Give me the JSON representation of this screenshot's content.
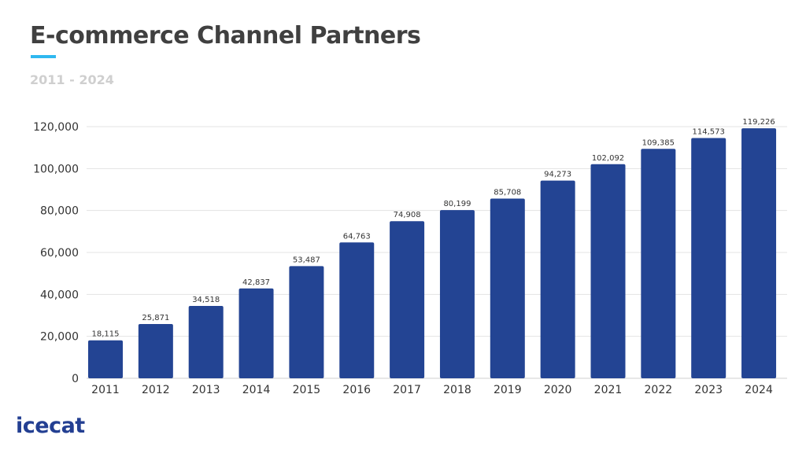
{
  "chart_data": {
    "type": "bar",
    "title": "E-commerce Channel Partners",
    "subtitle": "2011 - 2024",
    "categories": [
      "2011",
      "2012",
      "2013",
      "2014",
      "2015",
      "2016",
      "2017",
      "2018",
      "2019",
      "2020",
      "2021",
      "2022",
      "2023",
      "2024"
    ],
    "values": [
      18115,
      25871,
      34518,
      42837,
      53487,
      64763,
      74908,
      80199,
      85708,
      94273,
      102092,
      109385,
      114573,
      119226
    ],
    "data_labels": [
      "18,115",
      "25,871",
      "34,518",
      "42,837",
      "53,487",
      "64,763",
      "74,908",
      "80,199",
      "85,708",
      "94,273",
      "102,092",
      "109,385",
      "114,573",
      "119,226"
    ],
    "yticks": [
      0,
      20000,
      40000,
      60000,
      80000,
      100000,
      120000
    ],
    "ytick_labels": [
      "0",
      "20,000",
      "40,000",
      "60,000",
      "80,000",
      "100,000",
      "120,000"
    ],
    "ylim": [
      0,
      120000
    ],
    "xlabel": "",
    "ylabel": "",
    "grid": true,
    "bar_color": "#234493",
    "accent_color": "#2fb8f0"
  },
  "logo": "icecat"
}
